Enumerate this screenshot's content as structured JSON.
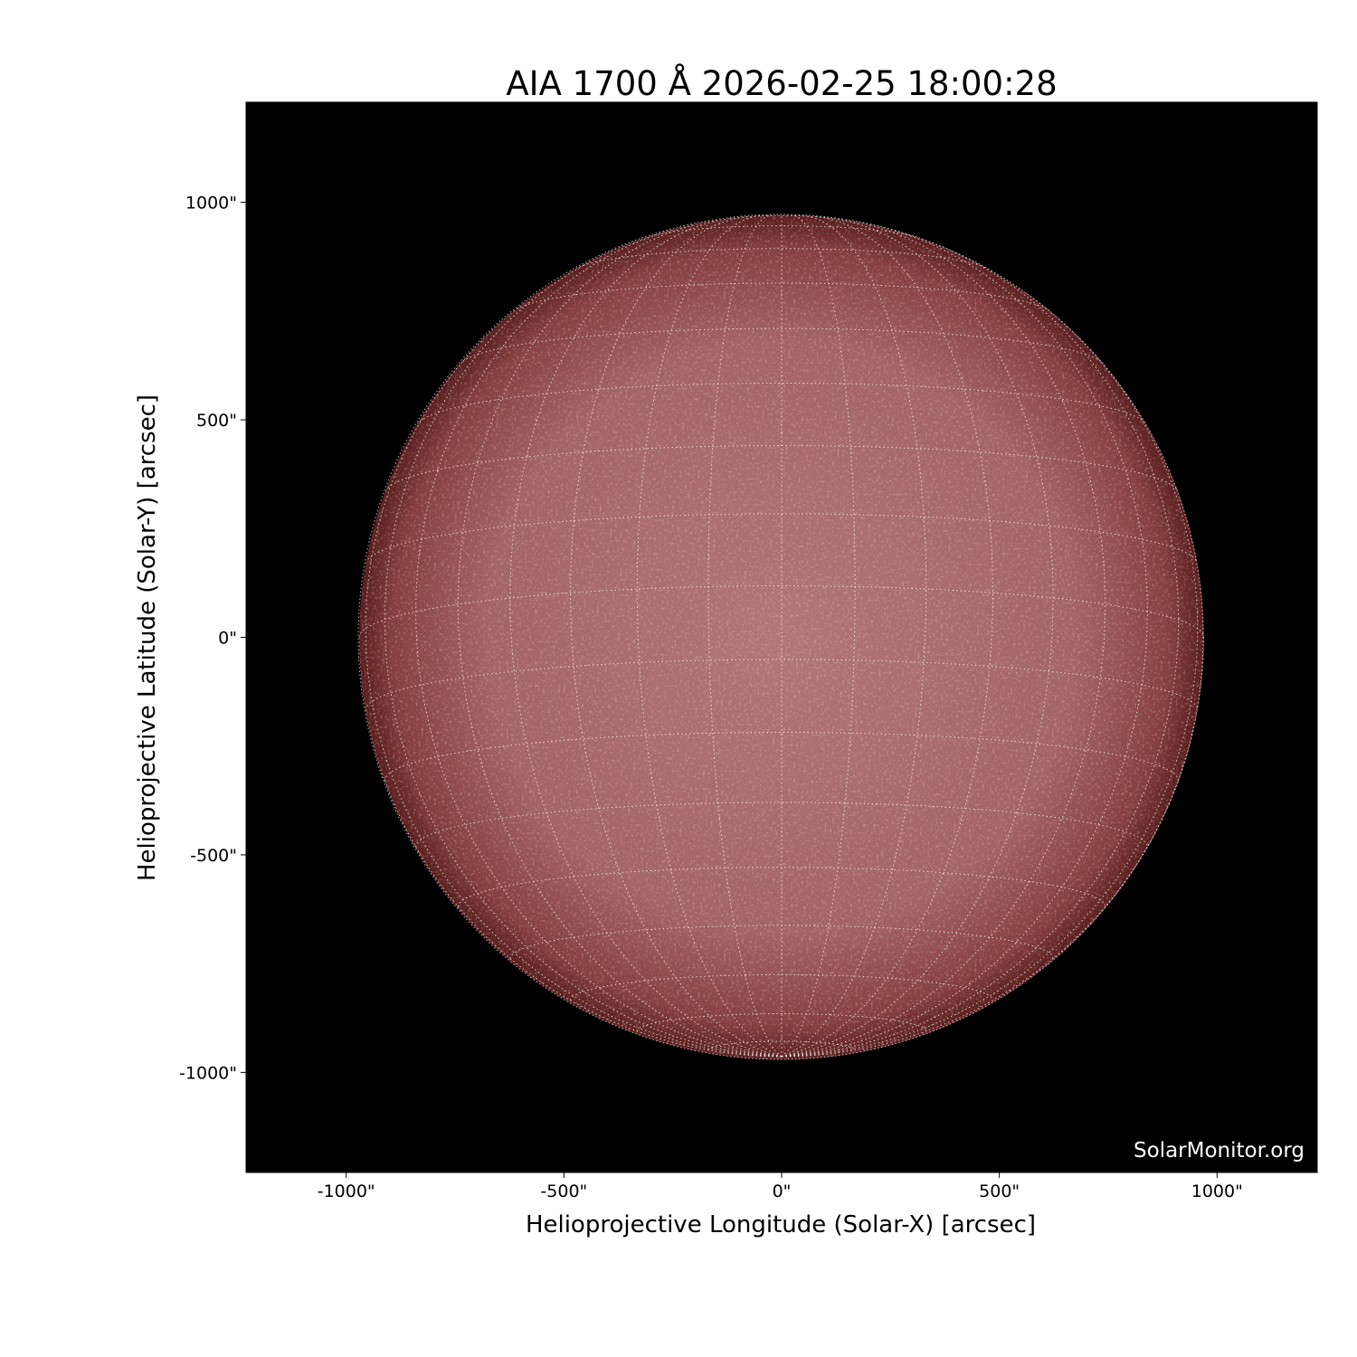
{
  "chart_data": {
    "type": "heatmap",
    "title": "AIA 1700 Å 2026-02-25 18:00:28",
    "xlabel": "Helioprojective Longitude (Solar-X) [arcsec]",
    "ylabel": "Helioprojective Latitude (Solar-Y) [arcsec]",
    "xlim": [
      -1230,
      1230
    ],
    "ylim": [
      -1230,
      1230
    ],
    "xticks": [
      -1000,
      -500,
      0,
      500,
      1000
    ],
    "yticks": [
      -1000,
      -500,
      0,
      500,
      1000
    ],
    "xtick_labels": [
      "-1000\"",
      "-500\"",
      "0\"",
      "500\"",
      "1000\""
    ],
    "ytick_labels": [
      "-1000\"",
      "-500\"",
      "0\"",
      "500\"",
      "1000\""
    ],
    "solar_radius_arcsec": 970,
    "heliographic_grid_spacing_deg": 10,
    "grid": true,
    "colormap": "sdoaia1700",
    "colors": {
      "background": "#000000",
      "disk_center": "#b07474",
      "disk_limb": "#5a1e1e",
      "grid": "#ffffff"
    },
    "watermark": "SolarMonitor.org"
  }
}
